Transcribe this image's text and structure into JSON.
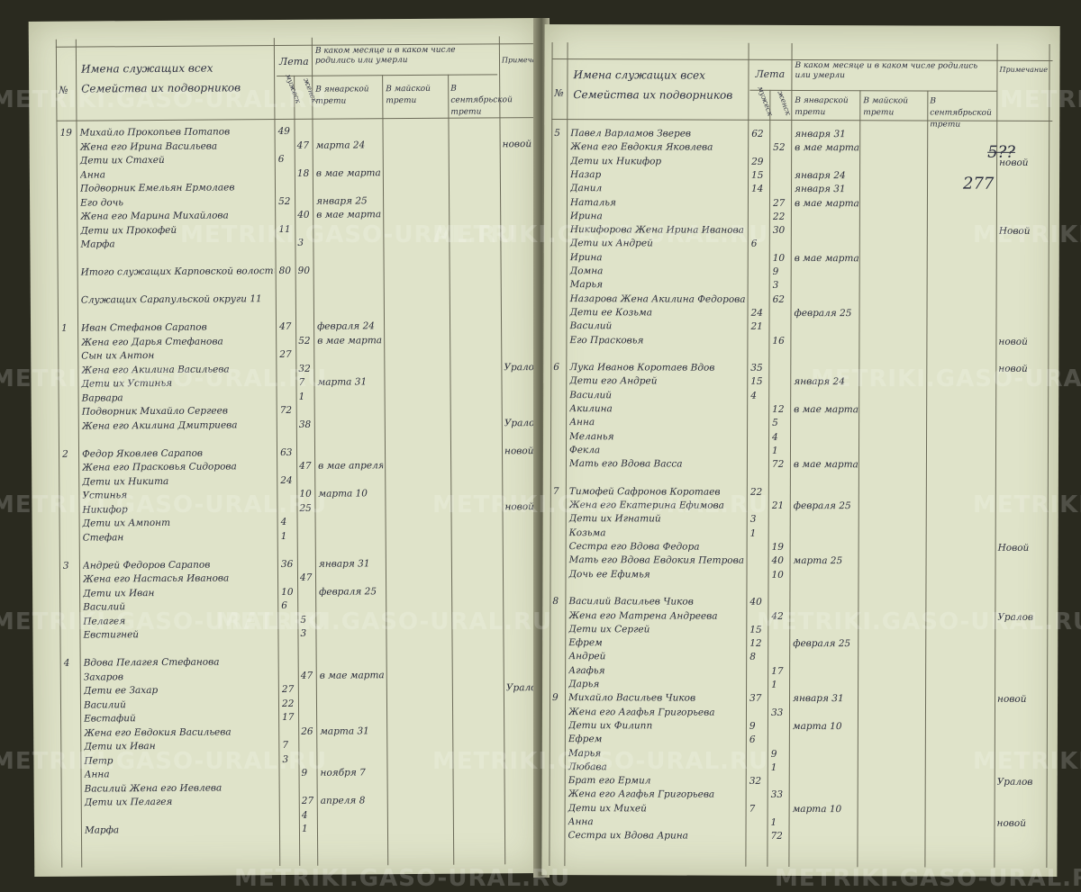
{
  "left_page": {
    "header": {
      "no": "№",
      "names": "Имена служащих всех Семейства их подворников",
      "age": "Лета",
      "male": "мужеск",
      "female": "женск",
      "months_title": "В каком месяце и в каком числе родились или умерли",
      "col1": "В январской трети",
      "col2": "В майской трети",
      "col3": "В сентябрьской трети",
      "notes": "Примечание"
    },
    "rows": [
      {
        "num": "19",
        "name": "Михайло Прокопьев Потапов",
        "m": "49",
        "f": "",
        "date": "",
        "note": ""
      },
      {
        "num": "",
        "name": "Жена его Ирина Васильева",
        "m": "",
        "f": "47",
        "date": "марта 24",
        "note": "новой"
      },
      {
        "num": "",
        "name": "Дети их Стахей",
        "m": "6",
        "f": "",
        "date": "",
        "note": ""
      },
      {
        "num": "",
        "name": "Анна",
        "m": "",
        "f": "18",
        "date": "в мае марта 31",
        "note": ""
      },
      {
        "num": "",
        "name": "Подворник Емельян Ермолаев",
        "m": "",
        "f": "",
        "date": "",
        "note": ""
      },
      {
        "num": "",
        "name": "Его дочь",
        "m": "52",
        "f": "",
        "date": "января 25",
        "note": ""
      },
      {
        "num": "",
        "name": "Жена его Марина Михайлова",
        "m": "",
        "f": "40",
        "date": "в мае марта 31",
        "note": ""
      },
      {
        "num": "",
        "name": "Дети их Прокофей",
        "m": "11",
        "f": "",
        "date": "",
        "note": ""
      },
      {
        "num": "",
        "name": "Марфа",
        "m": "",
        "f": "3",
        "date": "",
        "note": ""
      },
      {
        "num": "",
        "name": "",
        "m": "",
        "f": "",
        "date": "",
        "note": ""
      },
      {
        "num": "",
        "name": "Итого служащих Карповской волости",
        "m": "80",
        "f": "90",
        "date": "",
        "note": ""
      },
      {
        "num": "",
        "name": "",
        "m": "",
        "f": "",
        "date": "",
        "note": ""
      },
      {
        "num": "",
        "name": "Служащих Сарапульской округи 11",
        "m": "",
        "f": "",
        "date": "",
        "note": ""
      },
      {
        "num": "",
        "name": "",
        "m": "",
        "f": "",
        "date": "",
        "note": ""
      },
      {
        "num": "1",
        "name": "Иван Стефанов Сарапов",
        "m": "47",
        "f": "",
        "date": "февраля 24",
        "note": ""
      },
      {
        "num": "",
        "name": "Жена его Дарья Стефанова",
        "m": "",
        "f": "52",
        "date": "в мае марта 31",
        "note": ""
      },
      {
        "num": "",
        "name": "Сын их Антон",
        "m": "27",
        "f": "",
        "date": "",
        "note": ""
      },
      {
        "num": "",
        "name": "Жена его Акилина Васильева",
        "m": "",
        "f": "32",
        "date": "",
        "note": "Уралов"
      },
      {
        "num": "",
        "name": "Дети их Устинья",
        "m": "",
        "f": "7",
        "date": "марта 31",
        "note": ""
      },
      {
        "num": "",
        "name": "Варвара",
        "m": "",
        "f": "1",
        "date": "",
        "note": ""
      },
      {
        "num": "",
        "name": "Подворник Михайло Сергеев",
        "m": "72",
        "f": "",
        "date": "",
        "note": ""
      },
      {
        "num": "",
        "name": "Жена его Акилина Дмитриева",
        "m": "",
        "f": "38",
        "date": "",
        "note": "Уралов"
      },
      {
        "num": "",
        "name": "",
        "m": "",
        "f": "",
        "date": "",
        "note": ""
      },
      {
        "num": "2",
        "name": "Федор Яковлев Сарапов",
        "m": "63",
        "f": "",
        "date": "",
        "note": "новой"
      },
      {
        "num": "",
        "name": "Жена его Прасковья Сидорова",
        "m": "",
        "f": "47",
        "date": "в мае апреля 17",
        "note": ""
      },
      {
        "num": "",
        "name": "Дети их Никита",
        "m": "24",
        "f": "",
        "date": "",
        "note": ""
      },
      {
        "num": "",
        "name": "Устинья",
        "m": "",
        "f": "10",
        "date": "марта 10",
        "note": ""
      },
      {
        "num": "",
        "name": "Никифор",
        "m": "",
        "f": "25",
        "date": "",
        "note": "новой"
      },
      {
        "num": "",
        "name": "Дети их Ампонт",
        "m": "4",
        "f": "",
        "date": "",
        "note": ""
      },
      {
        "num": "",
        "name": "Стефан",
        "m": "1",
        "f": "",
        "date": "",
        "note": ""
      },
      {
        "num": "",
        "name": "",
        "m": "",
        "f": "",
        "date": "",
        "note": ""
      },
      {
        "num": "3",
        "name": "Андрей Федоров Сарапов",
        "m": "36",
        "f": "",
        "date": "января 31",
        "note": ""
      },
      {
        "num": "",
        "name": "Жена его Настасья Иванова",
        "m": "",
        "f": "47",
        "date": "",
        "note": ""
      },
      {
        "num": "",
        "name": "Дети их Иван",
        "m": "10",
        "f": "",
        "date": "февраля 25",
        "note": ""
      },
      {
        "num": "",
        "name": "Василий",
        "m": "6",
        "f": "",
        "date": "",
        "note": ""
      },
      {
        "num": "",
        "name": "Пелагея",
        "m": "",
        "f": "5",
        "date": "",
        "note": ""
      },
      {
        "num": "",
        "name": "Евстигней",
        "m": "",
        "f": "3",
        "date": "",
        "note": ""
      },
      {
        "num": "",
        "name": "",
        "m": "",
        "f": "",
        "date": "",
        "note": ""
      },
      {
        "num": "4",
        "name": "Вдова Пелагея Стефанова",
        "m": "",
        "f": "",
        "date": "",
        "note": ""
      },
      {
        "num": "",
        "name": "Захаров",
        "m": "",
        "f": "47",
        "date": "в мае марта 17",
        "note": ""
      },
      {
        "num": "",
        "name": "Дети ее Захар",
        "m": "27",
        "f": "",
        "date": "",
        "note": "Уралов"
      },
      {
        "num": "",
        "name": "Василий",
        "m": "22",
        "f": "",
        "date": "",
        "note": ""
      },
      {
        "num": "",
        "name": "Евстафий",
        "m": "17",
        "f": "",
        "date": "",
        "note": ""
      },
      {
        "num": "",
        "name": "Жена его Евдокия Васильева",
        "m": "",
        "f": "26",
        "date": "марта 31",
        "note": ""
      },
      {
        "num": "",
        "name": "Дети их Иван",
        "m": "7",
        "f": "",
        "date": "",
        "note": ""
      },
      {
        "num": "",
        "name": "Петр",
        "m": "3",
        "f": "",
        "date": "",
        "note": ""
      },
      {
        "num": "",
        "name": "Анна",
        "m": "",
        "f": "9",
        "date": "ноября 7",
        "note": ""
      },
      {
        "num": "",
        "name": "Василий Жена его Иевлева",
        "m": "",
        "f": "",
        "date": "",
        "note": ""
      },
      {
        "num": "",
        "name": "Дети их Пелагея",
        "m": "",
        "f": "27",
        "date": "апреля 8",
        "note": ""
      },
      {
        "num": "",
        "name": "",
        "m": "",
        "f": "4",
        "date": "",
        "note": ""
      },
      {
        "num": "",
        "name": "Марфа",
        "m": "",
        "f": "1",
        "date": "",
        "note": ""
      }
    ]
  },
  "right_page": {
    "header": {
      "no": "№",
      "names": "Имена служащих всех Семейства их подворников",
      "age": "Лета",
      "male": "мужеск",
      "female": "женск",
      "months_title": "В каком месяце и в каком числе родились или умерли",
      "col1": "В январской трети",
      "col2": "В майской трети",
      "col3": "В сентябрьской трети",
      "notes": "Примечание"
    },
    "page_numbers": {
      "crossed": "5??",
      "current": "277"
    },
    "rows": [
      {
        "num": "5",
        "name": "Павел Варламов Зверев",
        "m": "62",
        "f": "",
        "date": "января 31",
        "note": ""
      },
      {
        "num": "",
        "name": "Жена его Евдокия Яковлева",
        "m": "",
        "f": "52",
        "date": "в мае марта 24",
        "note": ""
      },
      {
        "num": "",
        "name": "Дети их Никифор",
        "m": "29",
        "f": "",
        "date": "",
        "note": "новой"
      },
      {
        "num": "",
        "name": "Назар",
        "m": "15",
        "f": "",
        "date": "января 24",
        "note": ""
      },
      {
        "num": "",
        "name": "Данил",
        "m": "14",
        "f": "",
        "date": "января 31",
        "note": ""
      },
      {
        "num": "",
        "name": "Наталья",
        "m": "",
        "f": "27",
        "date": "в мае марта 24",
        "note": ""
      },
      {
        "num": "",
        "name": "Ирина",
        "m": "",
        "f": "22",
        "date": "",
        "note": ""
      },
      {
        "num": "",
        "name": "Никифорова Жена Ирина Иванова",
        "m": "",
        "f": "30",
        "date": "",
        "note": "Новой"
      },
      {
        "num": "",
        "name": "Дети их Андрей",
        "m": "6",
        "f": "",
        "date": "",
        "note": ""
      },
      {
        "num": "",
        "name": "Ирина",
        "m": "",
        "f": "10",
        "date": "в мае марта 24",
        "note": ""
      },
      {
        "num": "",
        "name": "Домна",
        "m": "",
        "f": "9",
        "date": "",
        "note": ""
      },
      {
        "num": "",
        "name": "Марья",
        "m": "",
        "f": "3",
        "date": "",
        "note": ""
      },
      {
        "num": "",
        "name": "Назарова Жена Акилина Федорова",
        "m": "",
        "f": "62",
        "date": "",
        "note": ""
      },
      {
        "num": "",
        "name": "Дети ее Козьма",
        "m": "24",
        "f": "",
        "date": "февраля 25",
        "note": ""
      },
      {
        "num": "",
        "name": "Василий",
        "m": "21",
        "f": "",
        "date": "",
        "note": ""
      },
      {
        "num": "",
        "name": "Его Прасковья",
        "m": "",
        "f": "16",
        "date": "",
        "note": "новой"
      },
      {
        "num": "",
        "name": "",
        "m": "",
        "f": "",
        "date": "",
        "note": ""
      },
      {
        "num": "6",
        "name": "Лука Иванов Коротаев Вдов",
        "m": "35",
        "f": "",
        "date": "",
        "note": "новой"
      },
      {
        "num": "",
        "name": "Дети его Андрей",
        "m": "15",
        "f": "",
        "date": "января 24",
        "note": ""
      },
      {
        "num": "",
        "name": "Василий",
        "m": "4",
        "f": "",
        "date": "",
        "note": ""
      },
      {
        "num": "",
        "name": "Акилина",
        "m": "",
        "f": "12",
        "date": "в мае марта 24",
        "note": ""
      },
      {
        "num": "",
        "name": "Анна",
        "m": "",
        "f": "5",
        "date": "",
        "note": ""
      },
      {
        "num": "",
        "name": "Меланья",
        "m": "",
        "f": "4",
        "date": "",
        "note": ""
      },
      {
        "num": "",
        "name": "Фекла",
        "m": "",
        "f": "1",
        "date": "",
        "note": ""
      },
      {
        "num": "",
        "name": "Мать его Вдова Васса",
        "m": "",
        "f": "72",
        "date": "в мае марта 24",
        "note": ""
      },
      {
        "num": "",
        "name": "",
        "m": "",
        "f": "",
        "date": "",
        "note": ""
      },
      {
        "num": "7",
        "name": "Тимофей Сафронов Коротаев",
        "m": "22",
        "f": "",
        "date": "",
        "note": ""
      },
      {
        "num": "",
        "name": "Жена его Екатерина Ефимова",
        "m": "",
        "f": "21",
        "date": "февраля 25",
        "note": ""
      },
      {
        "num": "",
        "name": "Дети их Игнатий",
        "m": "3",
        "f": "",
        "date": "",
        "note": ""
      },
      {
        "num": "",
        "name": "Козьма",
        "m": "1",
        "f": "",
        "date": "",
        "note": ""
      },
      {
        "num": "",
        "name": "Сестра его Вдова Федора",
        "m": "",
        "f": "19",
        "date": "",
        "note": "Новой"
      },
      {
        "num": "",
        "name": "Мать его Вдова Евдокия Петрова",
        "m": "",
        "f": "40",
        "date": "марта 25",
        "note": ""
      },
      {
        "num": "",
        "name": "Дочь ее Ефимья",
        "m": "",
        "f": "10",
        "date": "",
        "note": ""
      },
      {
        "num": "",
        "name": "",
        "m": "",
        "f": "",
        "date": "",
        "note": ""
      },
      {
        "num": "8",
        "name": "Василий Васильев Чиков",
        "m": "40",
        "f": "",
        "date": "",
        "note": ""
      },
      {
        "num": "",
        "name": "Жена его Матрена Андреева",
        "m": "",
        "f": "42",
        "date": "",
        "note": "Уралов"
      },
      {
        "num": "",
        "name": "Дети их Сергей",
        "m": "15",
        "f": "",
        "date": "",
        "note": ""
      },
      {
        "num": "",
        "name": "Ефрем",
        "m": "12",
        "f": "",
        "date": "февраля 25",
        "note": ""
      },
      {
        "num": "",
        "name": "Андрей",
        "m": "8",
        "f": "",
        "date": "",
        "note": ""
      },
      {
        "num": "",
        "name": "Агафья",
        "m": "",
        "f": "17",
        "date": "",
        "note": ""
      },
      {
        "num": "",
        "name": "Дарья",
        "m": "",
        "f": "1",
        "date": "",
        "note": ""
      },
      {
        "num": "9",
        "name": "Михайло Васильев Чиков",
        "m": "37",
        "f": "",
        "date": "января 31",
        "note": "новой"
      },
      {
        "num": "",
        "name": "Жена его Агафья Григорьева",
        "m": "",
        "f": "33",
        "date": "",
        "note": ""
      },
      {
        "num": "",
        "name": "Дети их Филипп",
        "m": "9",
        "f": "",
        "date": "марта 10",
        "note": ""
      },
      {
        "num": "",
        "name": "Ефрем",
        "m": "6",
        "f": "",
        "date": "",
        "note": ""
      },
      {
        "num": "",
        "name": "Марья",
        "m": "",
        "f": "9",
        "date": "",
        "note": ""
      },
      {
        "num": "",
        "name": "Любава",
        "m": "",
        "f": "1",
        "date": "",
        "note": ""
      },
      {
        "num": "",
        "name": "Брат его Ермил",
        "m": "32",
        "f": "",
        "date": "",
        "note": "Уралов"
      },
      {
        "num": "",
        "name": "Жена его Агафья Григорьева",
        "m": "",
        "f": "33",
        "date": "",
        "note": ""
      },
      {
        "num": "",
        "name": "Дети их Михей",
        "m": "7",
        "f": "",
        "date": "марта 10",
        "note": ""
      },
      {
        "num": "",
        "name": "Анна",
        "m": "",
        "f": "1",
        "date": "",
        "note": "новой"
      },
      {
        "num": "",
        "name": "Сестра их Вдова Арина",
        "m": "",
        "f": "72",
        "date": "",
        "note": ""
      }
    ]
  },
  "watermark": "METRIKI.GASO-URAL.RU",
  "colors": {
    "paper": "#dfe3c9",
    "ink": "#2c2e3c",
    "background": "#2a2a1f"
  }
}
